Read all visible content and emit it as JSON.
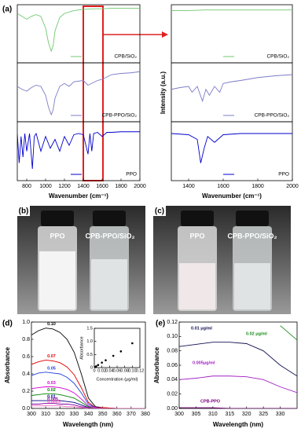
{
  "chart_data": [
    {
      "type": "line",
      "panel_label": "(a)",
      "xlim": [
        700,
        2000
      ],
      "ylim": [
        0,
        1
      ],
      "legend": "lower right",
      "x": [
        700,
        750,
        800,
        850,
        900,
        950,
        1000,
        1030,
        1060,
        1080,
        1100,
        1150,
        1200,
        1300,
        1400,
        1500,
        1600,
        1700,
        1800,
        1900,
        2000
      ],
      "series": [
        {
          "name": "CPB/SiO₂",
          "color": "#6fc86f",
          "values": [
            0.85,
            0.8,
            0.75,
            0.8,
            0.83,
            0.8,
            0.6,
            0.35,
            0.2,
            0.3,
            0.55,
            0.78,
            0.85,
            0.9,
            0.92,
            0.93,
            0.93,
            0.94,
            0.94,
            0.94,
            0.94
          ]
        }
      ]
    },
    {
      "type": "line",
      "xlim": [
        700,
        2000
      ],
      "ylim": [
        0,
        1
      ],
      "legend": "lower right",
      "x": [
        700,
        750,
        800,
        850,
        900,
        950,
        1000,
        1030,
        1060,
        1080,
        1100,
        1150,
        1200,
        1250,
        1300,
        1400,
        1450,
        1500,
        1550,
        1600,
        1700,
        1800,
        1900,
        2000
      ],
      "series": [
        {
          "name": "CPB-PPO/SiO₂",
          "color": "#7b7bc8",
          "values": [
            0.6,
            0.55,
            0.52,
            0.58,
            0.62,
            0.6,
            0.45,
            0.25,
            0.12,
            0.2,
            0.4,
            0.6,
            0.65,
            0.6,
            0.68,
            0.7,
            0.62,
            0.66,
            0.7,
            0.72,
            0.8,
            0.82,
            0.83,
            0.85
          ]
        }
      ]
    },
    {
      "type": "line",
      "xlim": [
        700,
        2000
      ],
      "ylim": [
        0,
        1
      ],
      "legend": "lower right",
      "xlabel": "Wavenumber (cm⁻¹)",
      "xticks": [
        800,
        1000,
        1200,
        1400,
        1600,
        1800,
        2000
      ],
      "x": [
        700,
        720,
        740,
        760,
        780,
        800,
        830,
        860,
        880,
        900,
        950,
        1000,
        1050,
        1100,
        1150,
        1200,
        1250,
        1300,
        1350,
        1400,
        1450,
        1470,
        1490,
        1510,
        1550,
        1600,
        1650,
        1700,
        1800,
        1900,
        2000
      ],
      "series": [
        {
          "name": "PPO",
          "color": "#0000cc",
          "values": [
            0.8,
            0.3,
            0.75,
            0.4,
            0.8,
            0.5,
            0.8,
            0.2,
            0.75,
            0.8,
            0.5,
            0.75,
            0.55,
            0.7,
            0.5,
            0.75,
            0.6,
            0.78,
            0.8,
            0.78,
            0.45,
            0.8,
            0.5,
            0.8,
            0.82,
            0.75,
            0.82,
            0.82,
            0.83,
            0.83,
            0.83
          ]
        }
      ]
    },
    {
      "type": "line",
      "xlim": [
        1300,
        2000
      ],
      "ylim": [
        0,
        1
      ],
      "legend": "lower right",
      "x": [
        1300,
        1400,
        1500,
        1600,
        1700,
        1800,
        1900,
        2000
      ],
      "series": [
        {
          "name": "CPB/SiO₂",
          "color": "#6fc86f",
          "values": [
            0.9,
            0.9,
            0.91,
            0.91,
            0.91,
            0.91,
            0.91,
            0.91
          ]
        }
      ]
    },
    {
      "type": "line",
      "xlim": [
        1300,
        2000
      ],
      "ylim": [
        0,
        1
      ],
      "legend": "lower right",
      "ylabel": "Intensity (a.u.)",
      "x": [
        1300,
        1350,
        1400,
        1420,
        1450,
        1480,
        1500,
        1520,
        1550,
        1580,
        1600,
        1650,
        1700,
        1800,
        1900,
        2000
      ],
      "series": [
        {
          "name": "CPB-PPO/SiO₂",
          "color": "#7b7bc8",
          "values": [
            0.55,
            0.58,
            0.6,
            0.5,
            0.6,
            0.35,
            0.55,
            0.45,
            0.6,
            0.5,
            0.65,
            0.68,
            0.7,
            0.75,
            0.78,
            0.8
          ]
        }
      ]
    },
    {
      "type": "line",
      "xlim": [
        1300,
        2000
      ],
      "ylim": [
        0,
        1
      ],
      "legend": "lower right",
      "xlabel": "Wavenumber (cm⁻¹)",
      "xticks": [
        1400,
        1600,
        1800,
        2000
      ],
      "x": [
        1300,
        1400,
        1450,
        1470,
        1490,
        1510,
        1550,
        1600,
        1700,
        1800,
        1900,
        2000
      ],
      "series": [
        {
          "name": "PPO",
          "color": "#0000cc",
          "values": [
            0.8,
            0.78,
            0.7,
            0.3,
            0.55,
            0.75,
            0.65,
            0.78,
            0.8,
            0.8,
            0.8,
            0.8
          ]
        }
      ]
    },
    {
      "type": "line",
      "panel_label": "(d)",
      "xlabel": "Wavelength (nm)",
      "ylabel": "Absorbance",
      "xlim": [
        300,
        380
      ],
      "xticks": [
        300,
        310,
        320,
        330,
        340,
        350,
        360,
        370,
        380
      ],
      "ylim": [
        0,
        1
      ],
      "yticks": [
        {
          "value": 0,
          "label": "0.0"
        },
        0.2,
        0.4,
        0.6,
        0.8,
        {
          "value": 1,
          "label": "1.0"
        }
      ],
      "x": [
        300,
        305,
        310,
        315,
        320,
        325,
        330,
        335,
        340,
        345,
        350,
        360,
        370,
        380
      ],
      "series": [
        {
          "name": "0.10",
          "color": "#000000",
          "values": [
            0.85,
            0.9,
            0.93,
            0.92,
            0.88,
            0.8,
            0.65,
            0.4,
            0.12,
            0.02,
            0.01,
            0,
            0,
            0
          ]
        },
        {
          "name": "0.07",
          "color": "#e00000",
          "values": [
            0.51,
            0.54,
            0.56,
            0.55,
            0.53,
            0.48,
            0.39,
            0.24,
            0.07,
            0.01,
            0.01,
            0,
            0,
            0
          ]
        },
        {
          "name": "0.05",
          "color": "#1f3fe0",
          "values": [
            0.38,
            0.41,
            0.42,
            0.41,
            0.4,
            0.36,
            0.29,
            0.18,
            0.05,
            0.01,
            0,
            0,
            0,
            0
          ]
        },
        {
          "name": "0.03",
          "color": "#d000d0",
          "values": [
            0.23,
            0.24,
            0.25,
            0.25,
            0.24,
            0.22,
            0.18,
            0.11,
            0.03,
            0.01,
            0,
            0,
            0,
            0
          ]
        },
        {
          "name": "0.02",
          "color": "#008000",
          "values": [
            0.15,
            0.16,
            0.17,
            0.17,
            0.16,
            0.14,
            0.12,
            0.07,
            0.02,
            0,
            0,
            0,
            0,
            0
          ]
        },
        {
          "name": "0.01",
          "color": "#000080",
          "values": [
            0.09,
            0.09,
            0.09,
            0.09,
            0.09,
            0.08,
            0.07,
            0.04,
            0.01,
            0,
            0,
            0,
            0,
            0
          ]
        },
        {
          "name": "0.005",
          "color": "#8000a0",
          "values": [
            0.05,
            0.05,
            0.06,
            0.06,
            0.05,
            0.05,
            0.04,
            0.02,
            0.01,
            0,
            0,
            0,
            0,
            0
          ]
        },
        {
          "name": "0.0025",
          "color": "#ff60c0",
          "values": [
            0.03,
            0.03,
            0.03,
            0.03,
            0.03,
            0.02,
            0.02,
            0.01,
            0,
            0,
            0,
            0,
            0,
            0
          ]
        }
      ]
    },
    {
      "type": "scatter",
      "xlabel": "Concentration (μg/ml)",
      "ylabel": "Absorbance",
      "xlim": [
        0,
        0.12
      ],
      "xticks": [
        0,
        0.02,
        0.04,
        0.06,
        0.08,
        {
          "value": 0.1,
          "label": "0.10"
        },
        0.12
      ],
      "ylim": [
        0,
        1.5
      ],
      "yticks": [
        0,
        0.5,
        {
          "value": 1,
          "label": "1.0"
        },
        1.5
      ],
      "x": [
        0.0025,
        0.005,
        0.01,
        0.02,
        0.03,
        0.05,
        0.07,
        0.1
      ],
      "series": [
        {
          "name": "Absorbance",
          "color": "#000000",
          "values": [
            0.02,
            0.05,
            0.1,
            0.19,
            0.28,
            0.45,
            0.62,
            0.93
          ]
        }
      ]
    },
    {
      "type": "line",
      "panel_label": "(e)",
      "xlabel": "Wavelength (nm)",
      "ylabel": "Absorbance",
      "xlim": [
        300,
        335
      ],
      "xticks": [
        300,
        305,
        310,
        315,
        320,
        325,
        330
      ],
      "ylim": [
        0,
        0.12
      ],
      "yticks": [
        {
          "value": 0,
          "label": "0.00"
        },
        0.02,
        0.04,
        0.06,
        0.08,
        {
          "value": 0.1,
          "label": "0.10"
        },
        0.12
      ],
      "x": [
        300,
        305,
        310,
        315,
        320,
        325,
        330,
        335
      ],
      "series": [
        {
          "name": "0.02 μg/ml",
          "color": "#1a8a1a",
          "values": [
            null,
            null,
            null,
            null,
            null,
            null,
            0.115,
            0.095
          ]
        },
        {
          "name": "0.01 μg/ml",
          "color": "#101050",
          "values": [
            0.086,
            0.089,
            0.092,
            0.092,
            0.09,
            0.08,
            0.06,
            0.045
          ]
        },
        {
          "name": "0.005μg/ml",
          "color": "#a020c0",
          "values": [
            0.04,
            0.042,
            0.045,
            0.045,
            0.044,
            0.04,
            0.03,
            0.022
          ]
        },
        {
          "name": "CPB-PPO",
          "color": "#800080",
          "values": [
            0.001,
            0.001,
            0.001,
            0,
            0,
            0,
            0,
            0
          ]
        }
      ]
    }
  ],
  "photos": [
    {
      "label": "(b)",
      "texts": [
        "PPO",
        "CPB-PPO/SiO₂"
      ]
    },
    {
      "label": "(c)",
      "texts": [
        "PPO",
        "CPB-PPO/SiO₂"
      ]
    }
  ]
}
